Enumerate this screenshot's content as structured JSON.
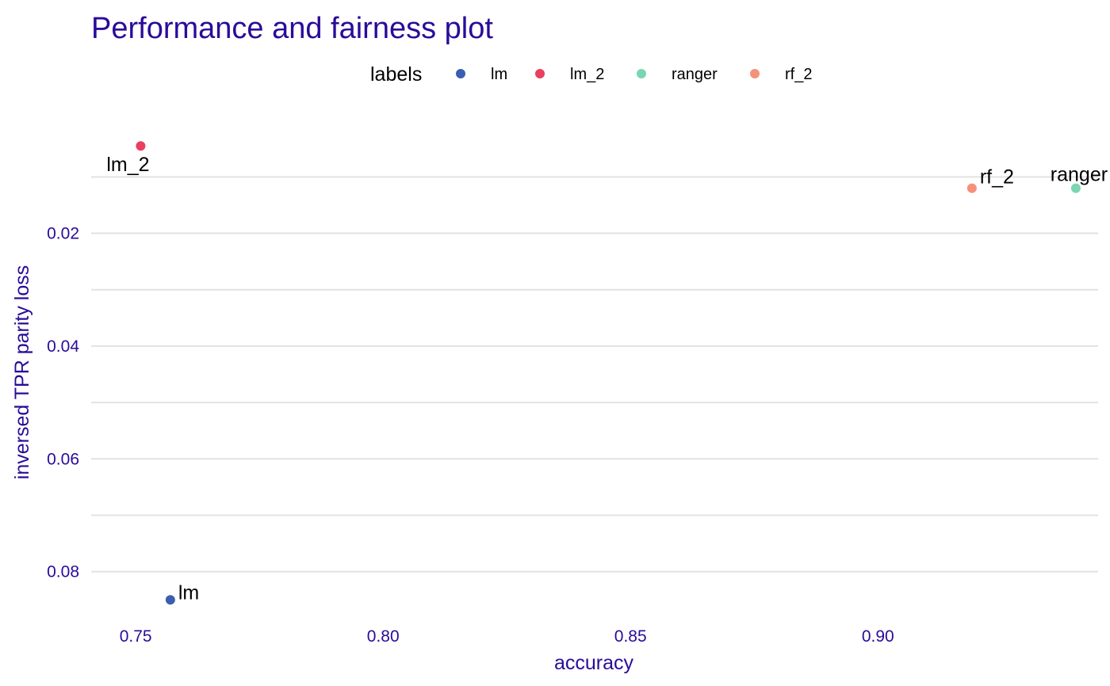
{
  "colors": {
    "title": "#2a0b99",
    "axis_text": "#2a0b99",
    "grid": "#e2e2e2"
  },
  "chart_data": {
    "type": "scatter",
    "title": "Performance and fairness plot",
    "xlabel": "accuracy",
    "ylabel": "inversed TPR parity loss",
    "legend_title": "labels",
    "legend_position": "top",
    "grid": true,
    "x_reversed": false,
    "y_reversed": true,
    "xlim": [
      0.741,
      0.9445
    ],
    "ylim": [
      0.0011,
      0.0896
    ],
    "x_ticks": [
      0.75,
      0.8,
      0.85,
      0.9
    ],
    "x_tick_labels": [
      "0.75",
      "0.80",
      "0.85",
      "0.90"
    ],
    "y_ticks": [
      0.02,
      0.04,
      0.06,
      0.08
    ],
    "y_tick_labels": [
      "0.02",
      "0.04",
      "0.06",
      "0.08"
    ],
    "y_minor_grid": [
      0.01,
      0.03,
      0.05,
      0.07
    ],
    "series": [
      {
        "name": "lm",
        "color": "#3a5fb0",
        "x": 0.757,
        "y": 0.085
      },
      {
        "name": "lm_2",
        "color": "#eb3f5f",
        "x": 0.751,
        "y": 0.0045
      },
      {
        "name": "ranger",
        "color": "#7bd5b2",
        "x": 0.94,
        "y": 0.012
      },
      {
        "name": "rf_2",
        "color": "#f5917a",
        "x": 0.919,
        "y": 0.012
      }
    ]
  }
}
